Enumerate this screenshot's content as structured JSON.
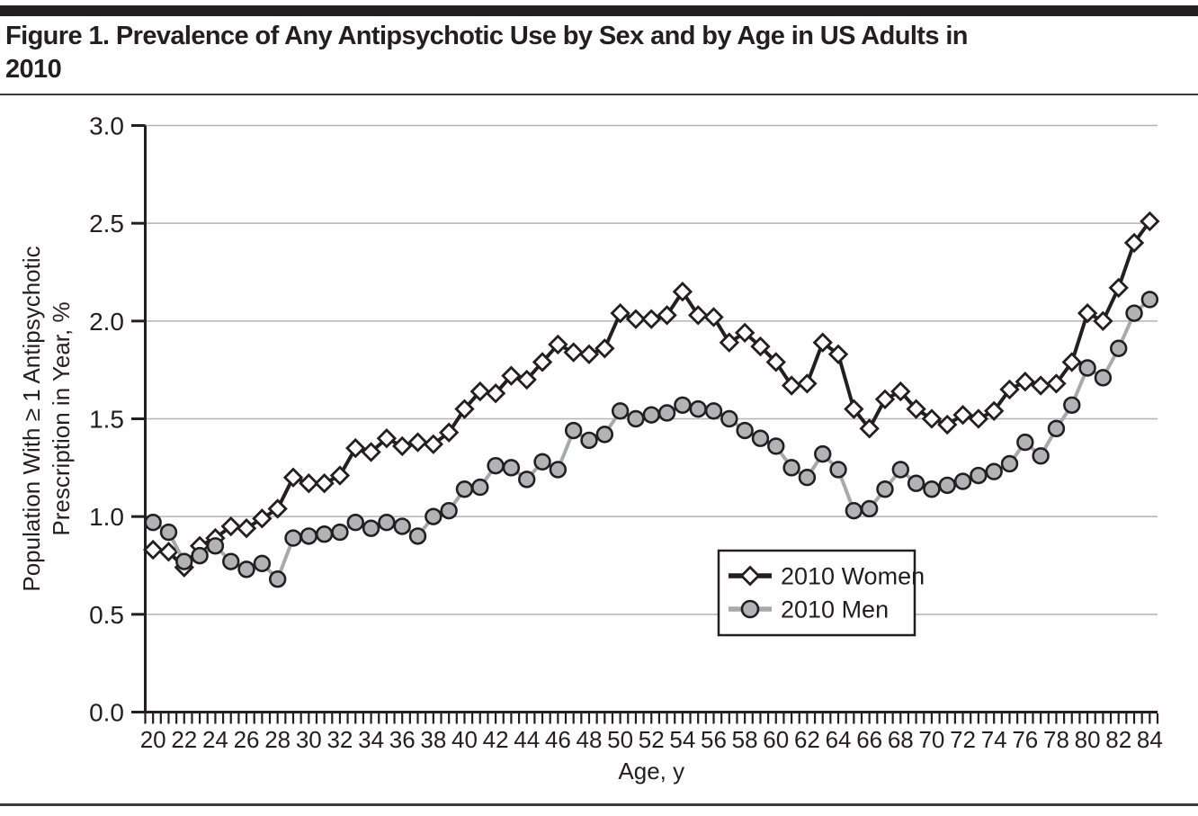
{
  "figure": {
    "title_line1": "Figure 1. Prevalence of Any Antipsychotic Use by Sex and by Age in US Adults in",
    "title_line2": "2010"
  },
  "chart_data": {
    "type": "line",
    "title": "Figure 1. Prevalence of Any Antipsychotic Use by Sex and by Age in US Adults in 2010",
    "xlabel": "Age, y",
    "ylabel_line1": "Population With ≥ 1 Antipsychotic",
    "ylabel_line2": "Prescription in Year, %",
    "xlim": [
      19.5,
      84.5
    ],
    "ylim": [
      0.0,
      3.0
    ],
    "grid": "horizontal gridlines at every 0.5, light gray",
    "legend_position": "inside, right-center, boxed",
    "y_tick_labels": [
      "0.0",
      "0.5",
      "1.0",
      "1.5",
      "2.0",
      "2.5",
      "3.0"
    ],
    "y_tick_values": [
      0.0,
      0.5,
      1.0,
      1.5,
      2.0,
      2.5,
      3.0
    ],
    "x_tick_labels": [
      "20",
      "22",
      "24",
      "26",
      "28",
      "30",
      "32",
      "34",
      "36",
      "38",
      "40",
      "42",
      "44",
      "46",
      "48",
      "50",
      "52",
      "54",
      "56",
      "58",
      "60",
      "62",
      "64",
      "66",
      "68",
      "70",
      "72",
      "74",
      "76",
      "78",
      "80",
      "82",
      "84"
    ],
    "x_minor_tick_step": 0.5,
    "x": [
      20,
      21,
      22,
      23,
      24,
      25,
      26,
      27,
      28,
      29,
      30,
      31,
      32,
      33,
      34,
      35,
      36,
      37,
      38,
      39,
      40,
      41,
      42,
      43,
      44,
      45,
      46,
      47,
      48,
      49,
      50,
      51,
      52,
      53,
      54,
      55,
      56,
      57,
      58,
      59,
      60,
      61,
      62,
      63,
      64,
      65,
      66,
      67,
      68,
      69,
      70,
      71,
      72,
      73,
      74,
      75,
      76,
      77,
      78,
      79,
      80,
      81,
      82,
      83,
      84
    ],
    "series": [
      {
        "name": "2010 Women",
        "marker": "diamond",
        "line_color": "#231f20",
        "marker_fill": "#ffffff",
        "marker_stroke": "#231f20",
        "values": [
          0.83,
          0.82,
          0.74,
          0.85,
          0.89,
          0.95,
          0.94,
          0.99,
          1.04,
          1.2,
          1.17,
          1.17,
          1.21,
          1.35,
          1.33,
          1.4,
          1.36,
          1.38,
          1.37,
          1.43,
          1.55,
          1.64,
          1.63,
          1.72,
          1.7,
          1.79,
          1.88,
          1.84,
          1.83,
          1.86,
          2.04,
          2.01,
          2.01,
          2.03,
          2.15,
          2.03,
          2.02,
          1.89,
          1.94,
          1.87,
          1.79,
          1.67,
          1.68,
          1.89,
          1.83,
          1.55,
          1.45,
          1.6,
          1.64,
          1.55,
          1.5,
          1.47,
          1.52,
          1.5,
          1.54,
          1.65,
          1.69,
          1.67,
          1.68,
          1.79,
          2.04,
          2.0,
          2.17,
          2.4,
          2.51
        ]
      },
      {
        "name": "2010 Men",
        "marker": "circle",
        "line_color": "#a7a9ac",
        "marker_fill": "#b1b3b6",
        "marker_stroke": "#231f20",
        "values": [
          0.97,
          0.92,
          0.77,
          0.8,
          0.85,
          0.77,
          0.73,
          0.76,
          0.68,
          0.89,
          0.9,
          0.91,
          0.92,
          0.97,
          0.94,
          0.97,
          0.95,
          0.9,
          1.0,
          1.03,
          1.14,
          1.15,
          1.26,
          1.25,
          1.19,
          1.28,
          1.24,
          1.44,
          1.39,
          1.42,
          1.54,
          1.5,
          1.52,
          1.53,
          1.57,
          1.55,
          1.54,
          1.5,
          1.44,
          1.4,
          1.36,
          1.25,
          1.2,
          1.32,
          1.24,
          1.03,
          1.04,
          1.14,
          1.24,
          1.17,
          1.14,
          1.16,
          1.18,
          1.21,
          1.23,
          1.27,
          1.38,
          1.31,
          1.45,
          1.57,
          1.76,
          1.71,
          1.86,
          2.04,
          2.11
        ]
      }
    ],
    "colors": {
      "ink": "#231f20",
      "grid": "#b1b3b6",
      "background": "#ffffff"
    }
  }
}
